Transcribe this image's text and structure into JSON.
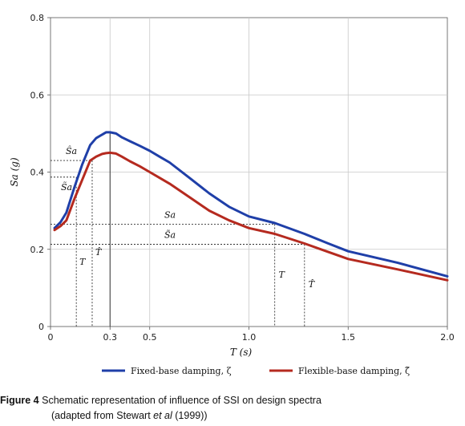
{
  "chart_data": {
    "type": "line",
    "xlabel": "T (s)",
    "ylabel": "Sa (g)",
    "xlim": [
      0,
      2.0
    ],
    "ylim": [
      0,
      0.8
    ],
    "x_ticks": [
      {
        "value": 0,
        "label": "0"
      },
      {
        "value": 0.3,
        "label": "0.3"
      },
      {
        "value": 0.5,
        "label": "0.5"
      },
      {
        "value": 1.0,
        "label": "1.0"
      },
      {
        "value": 1.5,
        "label": "1.5"
      },
      {
        "value": 2.0,
        "label": "2.0"
      }
    ],
    "y_ticks": [
      {
        "value": 0,
        "label": "0"
      },
      {
        "value": 0.2,
        "label": "0.2"
      },
      {
        "value": 0.4,
        "label": "0.4"
      },
      {
        "value": 0.6,
        "label": "0.6"
      },
      {
        "value": 0.8,
        "label": "0.8"
      }
    ],
    "grid": true,
    "legend_position": "bottom",
    "series": [
      {
        "name": "Fixed-base damping, ζ",
        "color": "#1f3fa8",
        "x": [
          0.02,
          0.05,
          0.08,
          0.12,
          0.16,
          0.2,
          0.23,
          0.26,
          0.28,
          0.3,
          0.33,
          0.36,
          0.4,
          0.45,
          0.5,
          0.55,
          0.6,
          0.7,
          0.8,
          0.9,
          1.0,
          1.13,
          1.28,
          1.4,
          1.5,
          1.75,
          2.0
        ],
        "y": [
          0.255,
          0.27,
          0.295,
          0.36,
          0.42,
          0.47,
          0.488,
          0.497,
          0.503,
          0.503,
          0.5,
          0.49,
          0.48,
          0.468,
          0.455,
          0.44,
          0.425,
          0.385,
          0.345,
          0.31,
          0.285,
          0.268,
          0.24,
          0.215,
          0.195,
          0.165,
          0.13
        ]
      },
      {
        "name": "Flexible-base damping, ζ̃",
        "color": "#b52a1f",
        "x": [
          0.02,
          0.05,
          0.08,
          0.12,
          0.16,
          0.2,
          0.23,
          0.26,
          0.28,
          0.3,
          0.33,
          0.36,
          0.4,
          0.45,
          0.5,
          0.55,
          0.6,
          0.7,
          0.8,
          0.9,
          1.0,
          1.13,
          1.28,
          1.4,
          1.5,
          1.75,
          2.0
        ],
        "y": [
          0.25,
          0.26,
          0.275,
          0.33,
          0.38,
          0.43,
          0.44,
          0.447,
          0.449,
          0.45,
          0.448,
          0.44,
          0.428,
          0.415,
          0.4,
          0.385,
          0.37,
          0.335,
          0.3,
          0.275,
          0.255,
          0.24,
          0.215,
          0.193,
          0.175,
          0.148,
          0.12
        ]
      }
    ],
    "annotations": {
      "hline_labels": [
        {
          "label": "Ŝa",
          "y": 0.43
        },
        {
          "label": "S̃a",
          "y": 0.387
        },
        {
          "label": "Sa",
          "y": 0.265
        },
        {
          "label": "S̃a",
          "y": 0.213
        }
      ],
      "vline_labels": [
        {
          "label": "T",
          "x": 0.13
        },
        {
          "label": "T̂",
          "x": 0.21
        },
        {
          "label": "T",
          "x": 1.13
        },
        {
          "label": "T̂",
          "x": 1.28
        }
      ],
      "peak_line_x": 0.3
    }
  },
  "caption": {
    "figure_label": "Figure 4",
    "text_line1": "Schematic representation of influence of SSI on design spectra",
    "text_line2_pre": "(adapted from Stewart ",
    "text_line2_em": "et al",
    "text_line2_post": " (1999))"
  }
}
